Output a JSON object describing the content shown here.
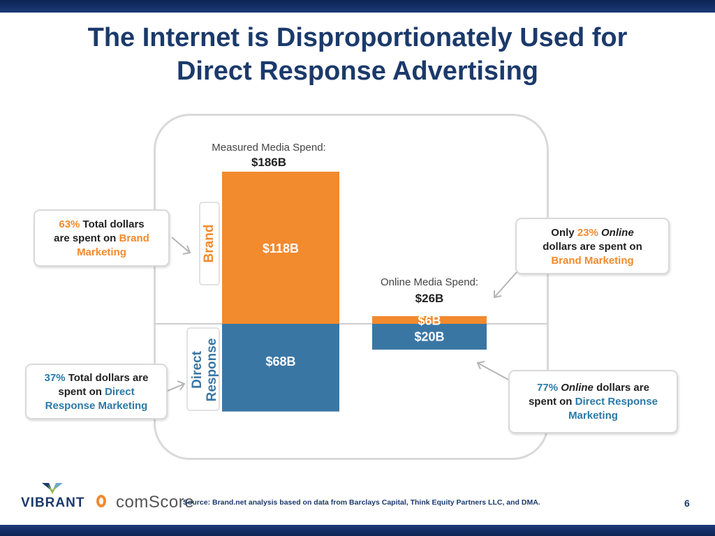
{
  "title_line1": "The Internet is Disproportionately Used for",
  "title_line2": "Direct Response Advertising",
  "chart_data": {
    "type": "bar",
    "stacked": true,
    "categories": [
      "Measured Media Spend:",
      "Online Media Spend:"
    ],
    "category_totals": [
      "$186B",
      "$26B"
    ],
    "totals": [
      186,
      26
    ],
    "series": [
      {
        "name": "Direct Response",
        "values": [
          68,
          20
        ],
        "labels": [
          "$68B",
          "$20B"
        ],
        "color": "#3a76a4"
      },
      {
        "name": "Brand",
        "values": [
          118,
          6
        ],
        "labels": [
          "$118B",
          "$6B"
        ],
        "color": "#f28a2e"
      }
    ],
    "ylim": [
      0,
      186
    ],
    "grid": false
  },
  "axis_labels": {
    "brand": "Brand",
    "direct_line1": "Direct",
    "direct_line2": "Response"
  },
  "callouts": {
    "brand_total": {
      "pct": "63%",
      "text1": " Total dollars",
      "text2": "are spent on ",
      "hl1": "Brand",
      "hl2": "Marketing"
    },
    "direct_total": {
      "pct": "37%",
      "text1": " Total dollars are",
      "text2": "spent on ",
      "hl1": "Direct",
      "hl2": "Response Marketing"
    },
    "online_brand": {
      "pre": "Only ",
      "pct": "23%",
      "italic": "Online",
      "text2": "dollars are spent on",
      "hl": "Brand Marketing"
    },
    "online_direct": {
      "pct": "77%",
      "italic": "Online",
      "text1": " dollars are",
      "text2": "spent on ",
      "hl1": "Direct Response",
      "hl2": "Marketing"
    }
  },
  "footer": {
    "vibrant": "VIBRANT",
    "comscore": "comScore",
    "source": "Source:  Brand.net analysis based on data from Barclays Capital, Think Equity Partners LLC, and DMA.",
    "page": "6"
  },
  "colors": {
    "navy": "#1b3a6b",
    "orange": "#f28a2e",
    "blue": "#3a76a4"
  }
}
